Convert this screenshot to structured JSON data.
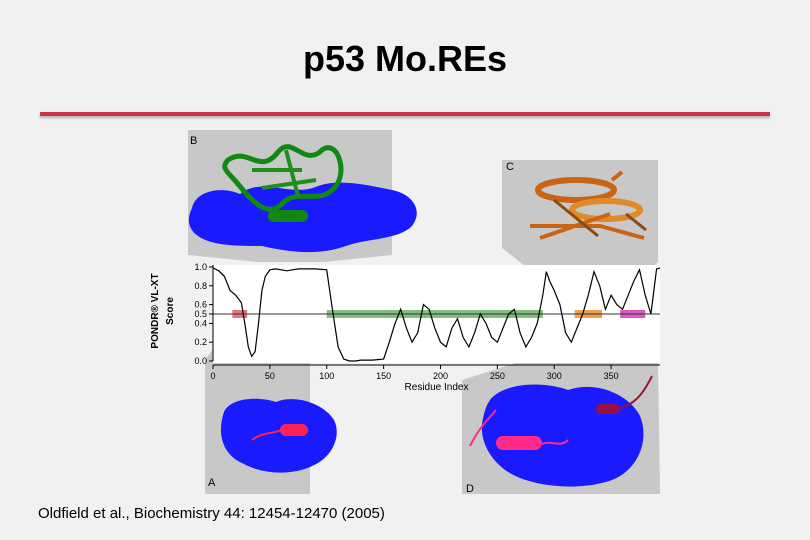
{
  "slide": {
    "title": "p53 Mo.REs",
    "citation": "Oldfield et al., Biochemistry 44: 12454-12470 (2005)"
  },
  "colors": {
    "rule": "#cc3344",
    "surface": "#1a1aff",
    "helix_green": "#118811",
    "helix_orange": "#c86414",
    "helix_red": "#ff2255",
    "helix_magenta": "#991144",
    "band_red": "#e05a6a",
    "band_green": "#6ab46a",
    "band_orange": "#e89030",
    "band_magenta": "#d23cb4"
  },
  "panels": {
    "A": "A",
    "B": "B",
    "C": "C",
    "D": "D"
  },
  "chart_data": {
    "type": "line",
    "ylabel_line1": "PONDR® VL-XT",
    "ylabel_line2": "Score",
    "xlabel": "Residue Index",
    "xlim": [
      0,
      393
    ],
    "ylim": [
      0,
      1
    ],
    "xticks": [
      0,
      50,
      100,
      150,
      200,
      250,
      300,
      350
    ],
    "yticks": [
      0.0,
      0.2,
      0.4,
      0.5,
      0.6,
      0.8,
      1.0
    ],
    "threshold": 0.5,
    "x": [
      0,
      5,
      10,
      15,
      20,
      25,
      28,
      31,
      34,
      37,
      40,
      43,
      46,
      50,
      55,
      60,
      65,
      70,
      75,
      80,
      90,
      100,
      105,
      110,
      115,
      120,
      125,
      130,
      140,
      150,
      155,
      160,
      165,
      170,
      175,
      180,
      185,
      190,
      195,
      200,
      205,
      210,
      215,
      220,
      225,
      230,
      235,
      240,
      245,
      250,
      255,
      260,
      265,
      270,
      275,
      280,
      285,
      290,
      293,
      296,
      300,
      305,
      310,
      315,
      320,
      325,
      330,
      335,
      340,
      345,
      350,
      355,
      360,
      365,
      370,
      375,
      380,
      385,
      390,
      393
    ],
    "y": [
      0.99,
      0.96,
      0.9,
      0.75,
      0.7,
      0.62,
      0.4,
      0.15,
      0.05,
      0.1,
      0.4,
      0.75,
      0.9,
      0.97,
      0.98,
      0.97,
      0.96,
      0.97,
      0.98,
      0.98,
      0.98,
      0.97,
      0.55,
      0.15,
      0.02,
      0.0,
      0.0,
      0.01,
      0.01,
      0.02,
      0.2,
      0.4,
      0.55,
      0.35,
      0.2,
      0.3,
      0.6,
      0.55,
      0.35,
      0.2,
      0.15,
      0.35,
      0.45,
      0.25,
      0.15,
      0.3,
      0.5,
      0.4,
      0.25,
      0.2,
      0.35,
      0.5,
      0.55,
      0.3,
      0.15,
      0.25,
      0.4,
      0.7,
      0.95,
      0.85,
      0.75,
      0.6,
      0.3,
      0.2,
      0.35,
      0.5,
      0.7,
      0.95,
      0.8,
      0.55,
      0.7,
      0.6,
      0.55,
      0.7,
      0.85,
      0.97,
      0.7,
      0.5,
      0.98,
      0.99
    ],
    "bands": [
      {
        "start": 17,
        "end": 30,
        "color": "#e05a6a"
      },
      {
        "start": 100,
        "end": 290,
        "color": "#6ab46a"
      },
      {
        "start": 318,
        "end": 342,
        "color": "#e89030"
      },
      {
        "start": 358,
        "end": 380,
        "color": "#d23cb4"
      }
    ]
  }
}
